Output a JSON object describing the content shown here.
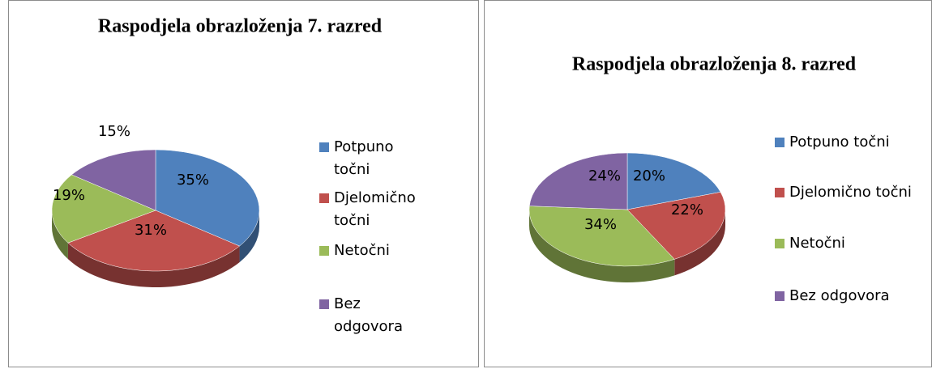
{
  "chart_data": [
    {
      "type": "pie",
      "title": "Raspodjela obrazloženja 7. razred",
      "categories": [
        "Potpuno točni",
        "Djelomično točni",
        "Netočni",
        "Bez odgovora"
      ],
      "values": [
        35,
        31,
        19,
        15
      ],
      "value_labels": [
        "35%",
        "31%",
        "19%",
        "15%"
      ],
      "colors": [
        "#4f81bd",
        "#c0504d",
        "#9bbb59",
        "#8064a2"
      ],
      "legend": "right"
    },
    {
      "type": "pie",
      "title": "Raspodjela obrazloženja 8. razred",
      "categories": [
        "Potpuno točni",
        "Djelomično točni",
        "Netočni",
        "Bez odgovora"
      ],
      "values": [
        20,
        22,
        34,
        24
      ],
      "value_labels": [
        "20%",
        "22%",
        "34%",
        "24%"
      ],
      "colors": [
        "#4f81bd",
        "#c0504d",
        "#9bbb59",
        "#8064a2"
      ],
      "legend": "right"
    }
  ]
}
